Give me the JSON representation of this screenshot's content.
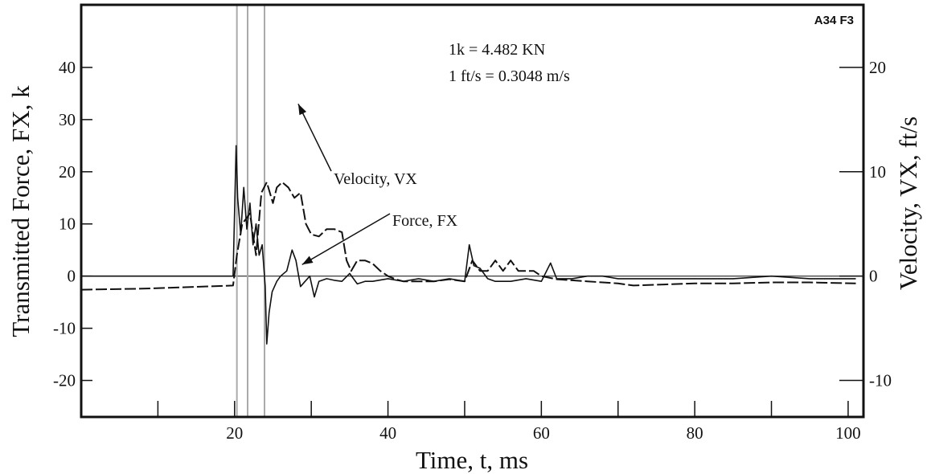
{
  "chart_data": {
    "type": "line",
    "corner_label": "A34 F3",
    "xlabel": "Time, t, ms",
    "ylabel_left": "Transmitted Force, FX, k",
    "ylabel_right": "Velocity, VX, ft/s",
    "xlim": [
      0,
      102
    ],
    "ylim_left": [
      -27,
      52
    ],
    "ylim_right": [
      -13.5,
      26
    ],
    "x_ticks": [
      20,
      40,
      60,
      80,
      100
    ],
    "y_ticks_left": [
      40,
      30,
      20,
      10,
      0,
      -10,
      -20
    ],
    "y_ticks_right": [
      20,
      10,
      0,
      -10
    ],
    "conversions": [
      "1k = 4.482 KN",
      "1 ft/s = 0.3048 m/s"
    ],
    "marker_lines_x": [
      20.3,
      21.7,
      23.9
    ],
    "annotations": [
      {
        "text": "Velocity, VX",
        "series": "Velocity, VX",
        "arrow_to": [
          28.3,
          16.5
        ]
      },
      {
        "text": "Force, FX",
        "series": "Force, FX",
        "arrow_to": [
          28.8,
          2.2
        ]
      }
    ],
    "series": [
      {
        "name": "Force, FX",
        "axis": "left",
        "x": [
          0,
          19.8,
          20.2,
          20.4,
          20.8,
          21.2,
          21.6,
          22.0,
          22.4,
          22.8,
          23.2,
          23.6,
          24.0,
          24.2,
          24.5,
          24.9,
          25.5,
          26.0,
          26.8,
          27.5,
          28.0,
          28.6,
          29.2,
          29.8,
          30.4,
          31.0,
          32.0,
          33.0,
          34.0,
          35.0,
          36.0,
          37.0,
          38.0,
          40.0,
          42.0,
          44.0,
          46.0,
          48.0,
          50.0,
          50.6,
          51.2,
          52.0,
          53.0,
          54.0,
          56.0,
          58.0,
          60.0,
          61.2,
          62.0,
          64.0,
          66.0,
          68.0,
          70.0,
          75.0,
          80.0,
          85.0,
          90.0,
          95.0,
          101.0
        ],
        "y": [
          0,
          0,
          25,
          15,
          8,
          17,
          9,
          14,
          6,
          10,
          4,
          6,
          -2,
          -13,
          -7,
          -3,
          -1,
          0,
          1,
          5,
          3,
          -2,
          -1,
          0,
          -4,
          -1,
          -0.5,
          -0.8,
          -1,
          0.5,
          -1.5,
          -1,
          -1,
          -0.5,
          -1,
          -0.5,
          -1,
          -0.5,
          -1,
          6,
          2,
          1.5,
          -0.5,
          -1,
          -1,
          -0.5,
          -1,
          2.5,
          -0.5,
          -0.5,
          0,
          0,
          -0.5,
          -0.5,
          -0.5,
          -0.5,
          0,
          -0.5,
          -0.5
        ]
      },
      {
        "name": "Velocity, VX",
        "axis": "right",
        "x": [
          0,
          8,
          19.8,
          20.3,
          21.0,
          22.0,
          22.8,
          23.5,
          24.2,
          25.0,
          25.5,
          26.2,
          27.0,
          27.8,
          28.6,
          29.3,
          30.0,
          31.0,
          32.0,
          33.0,
          34.0,
          34.6,
          35.2,
          36.0,
          37.0,
          38.0,
          39.0,
          40.0,
          41.0,
          42.0,
          44.0,
          46.0,
          48.0,
          50.0,
          51.0,
          52.0,
          53.0,
          54.0,
          55.0,
          56.0,
          57.0,
          58.0,
          59.0,
          60.0,
          62.0,
          64.0,
          66.0,
          68.0,
          70.0,
          72.0,
          76.0,
          80.0,
          85.0,
          90.0,
          95.0,
          101.0
        ],
        "y": [
          -1.3,
          -1.2,
          -0.9,
          2.0,
          5.0,
          6.0,
          2.0,
          8.0,
          9.0,
          7.0,
          8.5,
          9.0,
          8.5,
          7.5,
          8.0,
          5.0,
          4.0,
          3.8,
          4.5,
          4.5,
          4.2,
          1.5,
          0.5,
          1.5,
          1.5,
          1.2,
          0.5,
          0.0,
          -0.3,
          -0.5,
          -0.5,
          -0.5,
          -0.3,
          -0.5,
          1.5,
          0.5,
          0.5,
          1.5,
          0.5,
          1.5,
          0.5,
          0.5,
          0.5,
          0.0,
          -0.3,
          -0.4,
          -0.5,
          -0.6,
          -0.7,
          -0.9,
          -0.8,
          -0.7,
          -0.7,
          -0.6,
          -0.6,
          -0.7
        ]
      }
    ]
  }
}
